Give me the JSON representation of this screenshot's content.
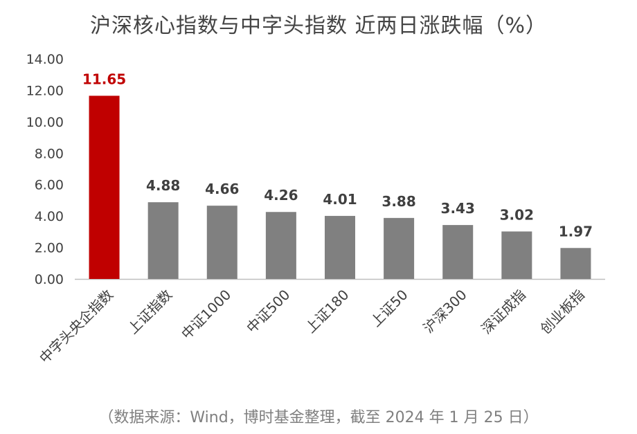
{
  "title": "沪深核心指数与中字头指数 近两日涨跌幅（%）",
  "source_note": "（数据来源：Wind，博时基金整理，截至 2024 年 1 月 25 日）",
  "colors": {
    "highlight": "#c00000",
    "bar": "#808080",
    "axis": "#bfbfbf",
    "text": "#404040"
  },
  "chart_data": {
    "type": "bar",
    "title": "沪深核心指数与中字头指数 近两日涨跌幅（%）",
    "categories": [
      "中字头央企指数",
      "上证指数",
      "中证1000",
      "中证500",
      "上证180",
      "上证50",
      "沪深300",
      "深证成指",
      "创业板指"
    ],
    "values": [
      11.65,
      4.88,
      4.66,
      4.26,
      4.01,
      3.88,
      3.43,
      3.02,
      1.97
    ],
    "value_labels": [
      "11.65",
      "4.88",
      "4.66",
      "4.26",
      "4.01",
      "3.88",
      "3.43",
      "3.02",
      "1.97"
    ],
    "highlight_index": 0,
    "xlabel": "",
    "ylabel": "",
    "ylim": [
      0,
      14
    ],
    "yticks": [
      "0.00",
      "2.00",
      "4.00",
      "6.00",
      "8.00",
      "10.00",
      "12.00",
      "14.00"
    ],
    "grid": false,
    "legend": "none"
  }
}
